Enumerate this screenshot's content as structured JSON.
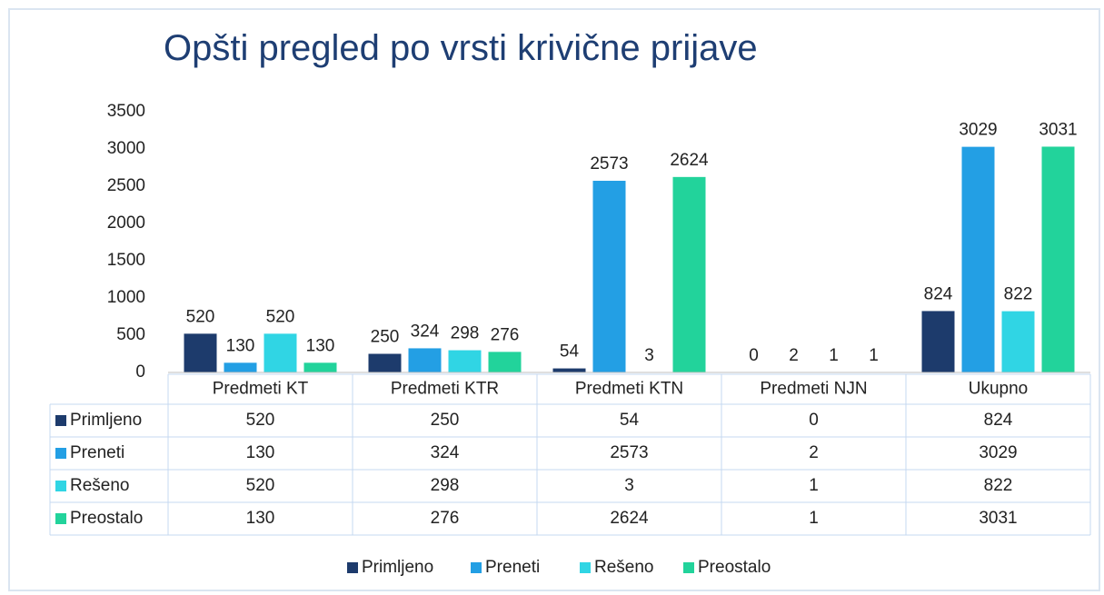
{
  "chart_data": {
    "type": "bar",
    "title": "Opšti pregled po vrsti krivične prijave",
    "categories": [
      "Predmeti KT",
      "Predmeti KTR",
      "Predmeti KTN",
      "Predmeti NJN",
      "Ukupno"
    ],
    "series": [
      {
        "name": "Primljeno",
        "color": "#1d3b6c",
        "values": [
          520,
          250,
          54,
          0,
          824
        ]
      },
      {
        "name": "Preneti",
        "color": "#239fe4",
        "values": [
          130,
          324,
          2573,
          2,
          3029
        ]
      },
      {
        "name": "Rešeno",
        "color": "#30d5e4",
        "values": [
          520,
          298,
          3,
          1,
          822
        ]
      },
      {
        "name": "Preostalo",
        "color": "#22d39b",
        "values": [
          130,
          276,
          2624,
          1,
          3031
        ]
      }
    ],
    "ylim": [
      0,
      3500
    ],
    "yticks": [
      0,
      500,
      1000,
      1500,
      2000,
      2500,
      3000,
      3500
    ],
    "grid": false,
    "legend": "bottom"
  }
}
